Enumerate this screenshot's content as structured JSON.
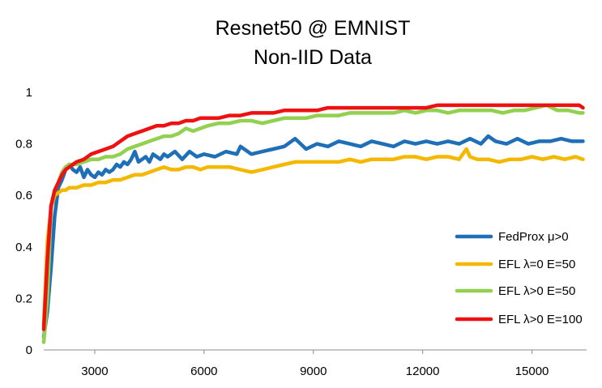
{
  "chart_data": {
    "type": "line",
    "title": "Resnet50 @ EMNIST",
    "subtitle": "Non-IID Data",
    "xlabel": "",
    "ylabel": "",
    "xlim": [
      1600,
      16500
    ],
    "ylim": [
      0,
      1
    ],
    "x_ticks": [
      3000,
      6000,
      9000,
      12000,
      15000
    ],
    "x_tick_labels": [
      "3000",
      "6000",
      "9000",
      "12000",
      "15000"
    ],
    "y_ticks": [
      0,
      0.2,
      0.4,
      0.6,
      0.8,
      1
    ],
    "y_tick_labels": [
      "0",
      "0.2",
      "0.4",
      "0.6",
      "0.8",
      "1"
    ],
    "grid": false,
    "legend_position": "bottom-right",
    "series": [
      {
        "name": "FedProx μ>0",
        "color": "#1f6fb8",
        "x": [
          1600,
          1700,
          1800,
          1900,
          2000,
          2100,
          2200,
          2300,
          2400,
          2500,
          2600,
          2700,
          2800,
          2900,
          3000,
          3100,
          3200,
          3300,
          3400,
          3500,
          3600,
          3700,
          3800,
          3900,
          4000,
          4100,
          4200,
          4300,
          4400,
          4500,
          4600,
          4700,
          4800,
          4900,
          5000,
          5200,
          5400,
          5600,
          5800,
          6000,
          6300,
          6600,
          6900,
          7000,
          7300,
          7600,
          7900,
          8200,
          8500,
          8800,
          9100,
          9400,
          9700,
          10000,
          10300,
          10600,
          10900,
          11200,
          11500,
          11800,
          12100,
          12400,
          12700,
          13000,
          13300,
          13600,
          13800,
          14000,
          14300,
          14600,
          14900,
          15200,
          15500,
          15800,
          16100,
          16400
        ],
        "values": [
          0.05,
          0.15,
          0.32,
          0.52,
          0.63,
          0.66,
          0.7,
          0.72,
          0.7,
          0.69,
          0.71,
          0.67,
          0.7,
          0.68,
          0.67,
          0.69,
          0.68,
          0.7,
          0.69,
          0.7,
          0.72,
          0.71,
          0.73,
          0.72,
          0.74,
          0.77,
          0.73,
          0.74,
          0.75,
          0.73,
          0.76,
          0.75,
          0.74,
          0.76,
          0.75,
          0.77,
          0.74,
          0.77,
          0.75,
          0.76,
          0.75,
          0.77,
          0.76,
          0.79,
          0.76,
          0.77,
          0.78,
          0.79,
          0.82,
          0.78,
          0.8,
          0.79,
          0.81,
          0.8,
          0.79,
          0.81,
          0.8,
          0.79,
          0.81,
          0.8,
          0.81,
          0.8,
          0.81,
          0.8,
          0.82,
          0.8,
          0.83,
          0.81,
          0.8,
          0.82,
          0.8,
          0.81,
          0.81,
          0.82,
          0.81,
          0.81
        ]
      },
      {
        "name": "EFL λ=0 E=50",
        "color": "#f5b800",
        "x": [
          1600,
          1700,
          1800,
          1900,
          2000,
          2100,
          2200,
          2300,
          2500,
          2700,
          2900,
          3100,
          3300,
          3500,
          3700,
          3900,
          4100,
          4300,
          4500,
          4700,
          4900,
          5100,
          5300,
          5500,
          5700,
          5900,
          6100,
          6400,
          6700,
          7000,
          7300,
          7600,
          7900,
          8200,
          8500,
          8800,
          9100,
          9400,
          9700,
          10000,
          10300,
          10600,
          10900,
          11200,
          11500,
          11800,
          12100,
          12400,
          12700,
          13000,
          13200,
          13300,
          13500,
          13800,
          14100,
          14400,
          14700,
          15000,
          15300,
          15600,
          15900,
          16200,
          16400
        ],
        "values": [
          0.1,
          0.42,
          0.55,
          0.6,
          0.61,
          0.62,
          0.62,
          0.63,
          0.63,
          0.64,
          0.64,
          0.65,
          0.65,
          0.66,
          0.66,
          0.67,
          0.68,
          0.68,
          0.69,
          0.7,
          0.71,
          0.7,
          0.7,
          0.71,
          0.71,
          0.7,
          0.71,
          0.71,
          0.71,
          0.7,
          0.69,
          0.7,
          0.71,
          0.72,
          0.73,
          0.73,
          0.73,
          0.73,
          0.73,
          0.74,
          0.73,
          0.74,
          0.74,
          0.74,
          0.75,
          0.75,
          0.74,
          0.75,
          0.75,
          0.74,
          0.78,
          0.75,
          0.74,
          0.74,
          0.73,
          0.74,
          0.74,
          0.75,
          0.74,
          0.75,
          0.74,
          0.75,
          0.74
        ]
      },
      {
        "name": "EFL λ>0 E=50",
        "color": "#92d050",
        "x": [
          1600,
          1700,
          1800,
          1900,
          2000,
          2100,
          2200,
          2300,
          2500,
          2700,
          2900,
          3100,
          3300,
          3500,
          3700,
          3900,
          4100,
          4300,
          4500,
          4700,
          4900,
          5100,
          5300,
          5500,
          5700,
          5900,
          6100,
          6400,
          6700,
          7000,
          7300,
          7600,
          7900,
          8200,
          8500,
          8800,
          9100,
          9400,
          9700,
          10000,
          10300,
          10600,
          10900,
          11200,
          11500,
          11800,
          12100,
          12400,
          12700,
          13000,
          13300,
          13600,
          13900,
          14200,
          14500,
          14800,
          15100,
          15400,
          15700,
          16000,
          16300,
          16400
        ],
        "values": [
          0.03,
          0.2,
          0.55,
          0.62,
          0.65,
          0.69,
          0.71,
          0.72,
          0.72,
          0.73,
          0.74,
          0.74,
          0.75,
          0.75,
          0.76,
          0.78,
          0.79,
          0.8,
          0.81,
          0.82,
          0.83,
          0.83,
          0.84,
          0.86,
          0.85,
          0.86,
          0.87,
          0.88,
          0.88,
          0.89,
          0.89,
          0.88,
          0.89,
          0.9,
          0.9,
          0.9,
          0.91,
          0.91,
          0.91,
          0.92,
          0.92,
          0.92,
          0.92,
          0.92,
          0.93,
          0.92,
          0.93,
          0.93,
          0.92,
          0.93,
          0.93,
          0.93,
          0.93,
          0.92,
          0.93,
          0.93,
          0.94,
          0.95,
          0.93,
          0.93,
          0.92,
          0.92
        ]
      },
      {
        "name": "EFL λ>0 E=100",
        "color": "#ee1111",
        "x": [
          1600,
          1700,
          1800,
          1900,
          2000,
          2100,
          2200,
          2300,
          2500,
          2700,
          2900,
          3100,
          3300,
          3500,
          3700,
          3900,
          4100,
          4300,
          4500,
          4700,
          4900,
          5100,
          5300,
          5500,
          5700,
          5900,
          6100,
          6400,
          6700,
          7000,
          7300,
          7600,
          7900,
          8200,
          8500,
          8800,
          9100,
          9400,
          9700,
          10000,
          10300,
          10600,
          10900,
          11200,
          11500,
          11800,
          12100,
          12400,
          12700,
          13000,
          13300,
          13600,
          13900,
          14200,
          14500,
          14800,
          15100,
          15400,
          15700,
          16000,
          16300,
          16400
        ],
        "values": [
          0.08,
          0.35,
          0.56,
          0.62,
          0.65,
          0.68,
          0.7,
          0.71,
          0.73,
          0.74,
          0.76,
          0.77,
          0.78,
          0.79,
          0.81,
          0.83,
          0.84,
          0.85,
          0.86,
          0.87,
          0.87,
          0.88,
          0.88,
          0.89,
          0.89,
          0.9,
          0.9,
          0.9,
          0.91,
          0.91,
          0.92,
          0.92,
          0.92,
          0.93,
          0.93,
          0.93,
          0.93,
          0.94,
          0.94,
          0.94,
          0.94,
          0.94,
          0.94,
          0.94,
          0.94,
          0.94,
          0.94,
          0.95,
          0.95,
          0.95,
          0.95,
          0.95,
          0.95,
          0.95,
          0.95,
          0.95,
          0.95,
          0.95,
          0.95,
          0.95,
          0.95,
          0.94
        ]
      }
    ]
  }
}
